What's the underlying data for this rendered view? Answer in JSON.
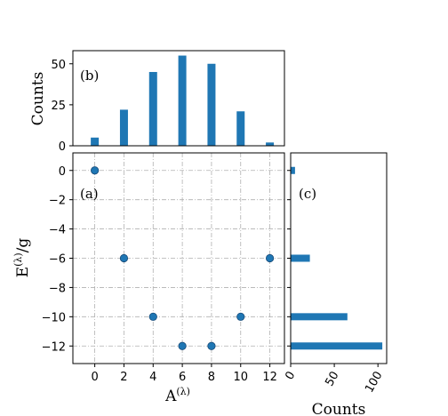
{
  "chart_data": [
    {
      "panel": "(b)",
      "type": "bar",
      "orientation": "vertical",
      "color": "#1f77b4",
      "x": [
        0,
        2,
        4,
        6,
        8,
        10,
        12
      ],
      "values": [
        5,
        22,
        45,
        55,
        50,
        21,
        2
      ],
      "xlim": [
        -1.5,
        13.0
      ],
      "ylim": [
        0,
        58
      ],
      "ylabel": "Counts",
      "yticks": [
        0,
        25,
        50
      ],
      "xlabel": "",
      "grid": false
    },
    {
      "panel": "(a)",
      "type": "scatter",
      "color": "#1f77b4",
      "x": [
        0,
        2,
        4,
        6,
        8,
        10,
        12
      ],
      "y": [
        0,
        -6,
        -10,
        -12,
        -12,
        -10,
        -6
      ],
      "xlim": [
        -1.5,
        13.0
      ],
      "ylim": [
        -13.2,
        1.2
      ],
      "xticks": [
        0,
        2,
        4,
        6,
        8,
        10,
        12
      ],
      "yticks": [
        0,
        -2,
        -4,
        -6,
        -8,
        -10,
        -12
      ],
      "xlabel": "A(λ)",
      "ylabel": "E(λ)/g",
      "grid": true
    },
    {
      "panel": "(c)",
      "type": "bar",
      "orientation": "horizontal",
      "color": "#1f77b4",
      "y": [
        0,
        -6,
        -10,
        -12
      ],
      "values": [
        5,
        22,
        65,
        105
      ],
      "xlim": [
        0,
        110
      ],
      "ylim": [
        -13.2,
        1.2
      ],
      "xticks": [
        0,
        50,
        100
      ],
      "xlabel": "Counts",
      "ylabel": "",
      "grid": false
    }
  ],
  "labels": {
    "panel_b": "(b)",
    "panel_a": "(a)",
    "panel_c": "(c)",
    "b_ylabel": "Counts",
    "a_xlabel_base": "A",
    "a_xlabel_sup": "(λ)",
    "a_ylabel_base": "E",
    "a_ylabel_sup": "(λ)",
    "a_ylabel_tail": "/g",
    "c_xlabel": "Counts"
  }
}
